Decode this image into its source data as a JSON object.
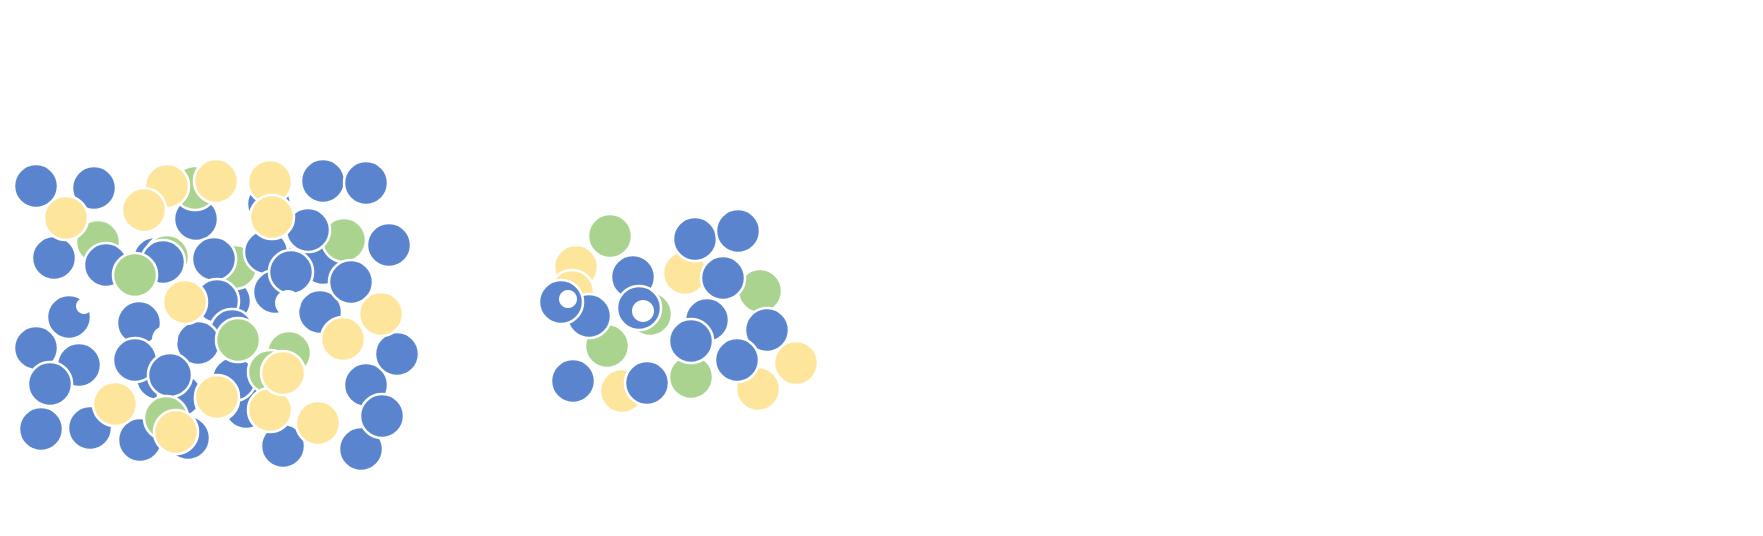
{
  "palette": {
    "blue": "#5b84cf",
    "green": "#a9d38e",
    "yellow": "#fde59b",
    "background": "#ffffff"
  },
  "groups": [
    {
      "name": "left-cluster",
      "counts": {
        "blue": 47,
        "green": 10,
        "yellow": 17
      }
    },
    {
      "name": "right-cluster",
      "counts": {
        "blue": 13,
        "green": 5,
        "yellow": 6
      }
    }
  ]
}
